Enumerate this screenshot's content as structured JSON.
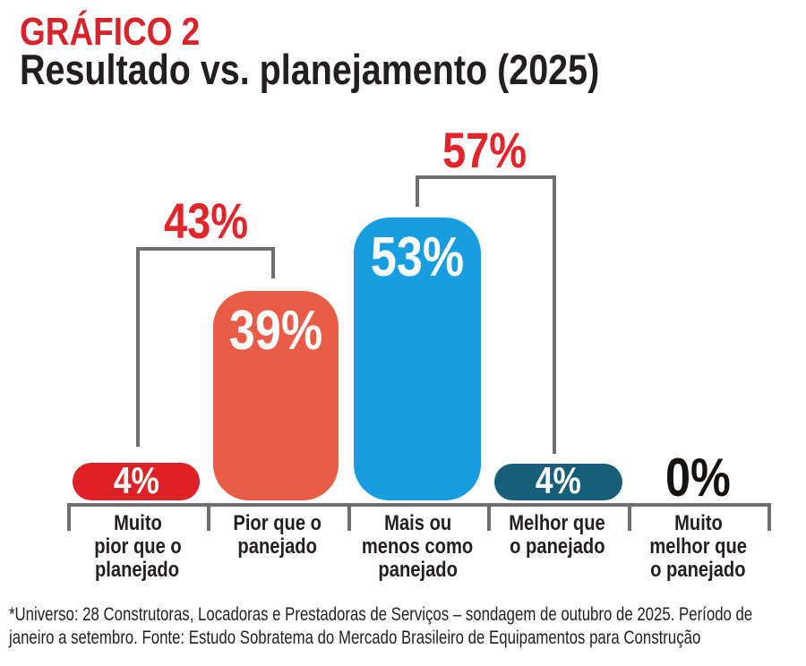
{
  "header": {
    "kicker": "GRÁFICO 2",
    "title": "Resultado vs. planejamento (2025)"
  },
  "chart_data": {
    "type": "bar",
    "title": "Resultado vs. planejamento (2025)",
    "categories": [
      "Muito pior que o planejado",
      "Pior que o panejado",
      "Mais ou menos como panejado",
      "Melhor que o panejado",
      "Muito melhor que o panejado"
    ],
    "values": [
      4,
      39,
      53,
      4,
      0
    ],
    "value_labels": [
      "4%",
      "39%",
      "53%",
      "4%",
      "0%"
    ],
    "unit": "%",
    "ylim": [
      0,
      57
    ],
    "grid": false,
    "legend": null,
    "bar_colors": [
      "#dd2127",
      "#e85b45",
      "#189ee0",
      "#175f78",
      null
    ],
    "annotations": [
      {
        "label": "43%",
        "value": 43,
        "spans_categories": [
          0,
          1
        ],
        "style": "bracket"
      },
      {
        "label": "57%",
        "value": 57,
        "spans_categories": [
          2,
          3
        ],
        "style": "bracket"
      }
    ]
  },
  "category_label_lines": [
    [
      "Muito",
      "pior que o",
      "planejado"
    ],
    [
      "Pior que o",
      "panejado"
    ],
    [
      "Mais ou",
      "menos como",
      "panejado"
    ],
    [
      "Melhor que",
      "o panejado"
    ],
    [
      "Muito",
      "melhor que",
      "o panejado"
    ]
  ],
  "footnote_lines": [
    "*Universo: 28 Construtoras, Locadoras e Prestadoras de Serviços – sondagem de outubro de 2025. Período de",
    "janeiro a setembro. Fonte: Estudo Sobratema do Mercado Brasileiro de Equipamentos para Construção"
  ],
  "colors": {
    "kicker_red": "#d7242b",
    "percent_red": "#e2242b",
    "bar_red": "#dd2127",
    "bar_salmon": "#e85b45",
    "bar_blue": "#189ee0",
    "bar_teal": "#175f78",
    "axis_gray": "#6d6e71",
    "text_dark": "#231f20",
    "zero_black": "#161210"
  }
}
